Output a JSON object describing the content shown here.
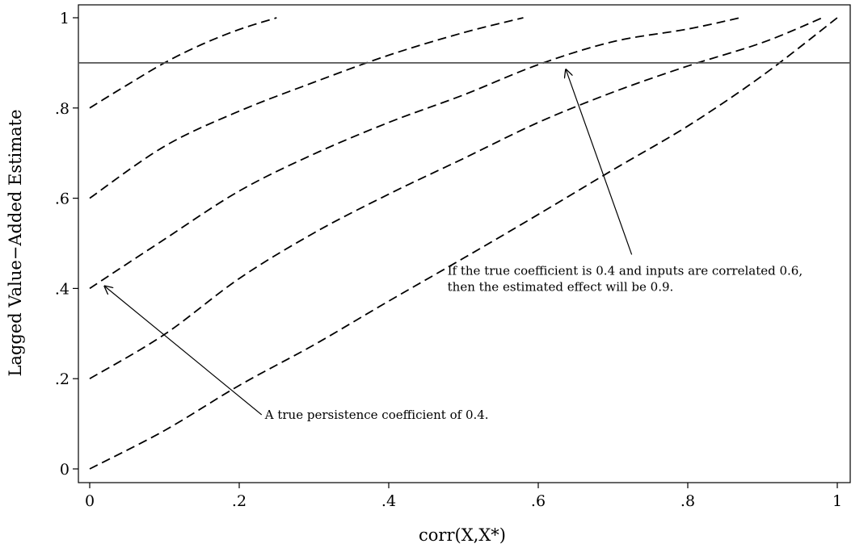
{
  "chart_data": {
    "type": "line",
    "xlabel": "corr(X,X*)",
    "ylabel": "Lagged Value−Added Estimate",
    "xlim": [
      0,
      1
    ],
    "ylim": [
      0,
      1
    ],
    "x_ticks": [
      {
        "value": 0,
        "label": "0"
      },
      {
        "value": 0.2,
        "label": ".2"
      },
      {
        "value": 0.4,
        "label": ".4"
      },
      {
        "value": 0.6,
        "label": ".6"
      },
      {
        "value": 0.8,
        "label": ".8"
      },
      {
        "value": 1,
        "label": "1"
      }
    ],
    "y_ticks": [
      {
        "value": 0,
        "label": "0"
      },
      {
        "value": 0.2,
        "label": ".2"
      },
      {
        "value": 0.4,
        "label": ".4"
      },
      {
        "value": 0.6,
        "label": ".6"
      },
      {
        "value": 0.8,
        "label": ".8"
      },
      {
        "value": 1,
        "label": "1"
      }
    ],
    "grid": false,
    "legend": "none",
    "series": [
      {
        "style": "dashed",
        "x": [
          0,
          0.05,
          0.1,
          0.15,
          0.2,
          0.25
        ],
        "y": [
          0.8,
          0.851,
          0.9,
          0.941,
          0.974,
          1.0
        ]
      },
      {
        "style": "dashed",
        "x": [
          0,
          0.1,
          0.2,
          0.3,
          0.4,
          0.5,
          0.58
        ],
        "y": [
          0.6,
          0.715,
          0.793,
          0.857,
          0.917,
          0.967,
          1.0
        ]
      },
      {
        "style": "dashed",
        "x": [
          0,
          0.1,
          0.2,
          0.3,
          0.4,
          0.5,
          0.6,
          0.7,
          0.8,
          0.87
        ],
        "y": [
          0.4,
          0.509,
          0.616,
          0.698,
          0.768,
          0.829,
          0.896,
          0.947,
          0.975,
          1.0
        ]
      },
      {
        "style": "dashed",
        "x": [
          0,
          0.1,
          0.2,
          0.3,
          0.4,
          0.5,
          0.6,
          0.7,
          0.8,
          0.9,
          0.98
        ],
        "y": [
          0.2,
          0.298,
          0.422,
          0.523,
          0.609,
          0.688,
          0.768,
          0.835,
          0.893,
          0.945,
          1.0
        ]
      },
      {
        "style": "dashed",
        "x": [
          0,
          0.1,
          0.2,
          0.3,
          0.4,
          0.5,
          0.6,
          0.7,
          0.8,
          0.9,
          1.0
        ],
        "y": [
          0.0,
          0.085,
          0.185,
          0.275,
          0.372,
          0.467,
          0.564,
          0.663,
          0.76,
          0.872,
          1.0
        ]
      }
    ],
    "reference_line": {
      "orientation": "horizontal",
      "y": 0.9,
      "color": "#555555"
    },
    "annotations": [
      {
        "lines": [
          "A true persistence coefficient of 0.4."
        ],
        "arrow_from": [
          0.23,
          0.12
        ],
        "arrow_to": [
          0.02,
          0.405
        ]
      },
      {
        "lines": [
          "If the true coefficient is 0.4 and inputs are correlated 0.6,",
          "then the estimated effect will be 0.9."
        ],
        "arrow_from": [
          0.725,
          0.475
        ],
        "arrow_to": [
          0.637,
          0.885
        ]
      }
    ]
  }
}
